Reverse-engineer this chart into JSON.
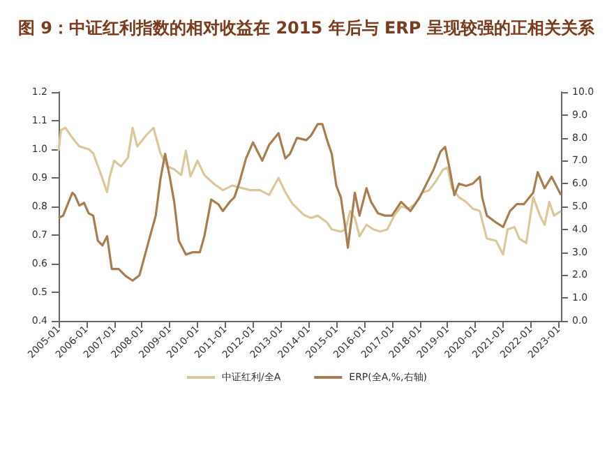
{
  "chart_data": {
    "type": "line",
    "title": "图 9：中证红利指数的相对收益在 2015 年后与 ERP 呈现较强的正相关关系",
    "xlim": [
      "2005-01",
      "2023-02"
    ],
    "xticks": [
      "2005-01",
      "2006-01",
      "2007-01",
      "2008-01",
      "2009-01",
      "2010-01",
      "2011-01",
      "2012-01",
      "2013-01",
      "2014-01",
      "2015-01",
      "2016-01",
      "2017-01",
      "2018-01",
      "2019-01",
      "2020-01",
      "2021-01",
      "2022-01",
      "2023-01"
    ],
    "ylim": [
      0.4,
      1.2
    ],
    "yticks": [
      0.4,
      0.5,
      0.6,
      0.7,
      0.8,
      0.9,
      {
        "value": 1,
        "label": "1.0"
      },
      1.1,
      1.2
    ],
    "y2lim": [
      0,
      10
    ],
    "y2ticks": [
      {
        "value": 0,
        "label": "0.0"
      },
      {
        "value": 1,
        "label": "1.0"
      },
      {
        "value": 2,
        "label": "2.0"
      },
      {
        "value": 3,
        "label": "3.0"
      },
      {
        "value": 4,
        "label": "4.0"
      },
      {
        "value": 5,
        "label": "5.0"
      },
      {
        "value": 6,
        "label": "6.0"
      },
      {
        "value": 7,
        "label": "7.0"
      },
      {
        "value": 8,
        "label": "8.0"
      },
      {
        "value": 9,
        "label": "9.0"
      },
      {
        "value": 10,
        "label": "10.0"
      }
    ],
    "grid": false,
    "legend": "bottom",
    "marker": "none",
    "line_style": "solid",
    "series": [
      {
        "name": "中证红利/全A",
        "color": "#dcc79a",
        "x": [
          "2005-01",
          "2005-02",
          "2005-04",
          "2005-07",
          "2005-10",
          "2006-02",
          "2006-04",
          "2006-07",
          "2006-10",
          "2006-11",
          "2007-01",
          "2007-04",
          "2007-07",
          "2007-09",
          "2007-11",
          "2008-03",
          "2008-06",
          "2008-09",
          "2008-12",
          "2009-03",
          "2009-06",
          "2009-08",
          "2009-10",
          "2010-01",
          "2010-04",
          "2010-08",
          "2010-12",
          "2011-04",
          "2011-08",
          "2011-12",
          "2012-04",
          "2012-08",
          "2012-12",
          "2013-03",
          "2013-06",
          "2013-11",
          "2014-02",
          "2014-05",
          "2014-09",
          "2014-11",
          "2015-03",
          "2015-05",
          "2015-07",
          "2015-09",
          "2015-11",
          "2016-02",
          "2016-05",
          "2016-08",
          "2016-11",
          "2017-02",
          "2017-05",
          "2017-08",
          "2017-11",
          "2018-02",
          "2018-05",
          "2018-08",
          "2018-11",
          "2019-01",
          "2019-03",
          "2019-06",
          "2019-09",
          "2019-12",
          "2020-03",
          "2020-06",
          "2020-10",
          "2021-01",
          "2021-03",
          "2021-06",
          "2021-08",
          "2021-11",
          "2022-02",
          "2022-05",
          "2022-07",
          "2022-09",
          "2022-11",
          "2023-02"
        ],
        "values": [
          0.995,
          1.067,
          1.075,
          1.04,
          1.01,
          1.0,
          0.986,
          0.92,
          0.85,
          0.9,
          0.96,
          0.94,
          0.97,
          1.075,
          1.01,
          1.05,
          1.075,
          0.986,
          0.94,
          0.93,
          0.91,
          0.995,
          0.905,
          0.96,
          0.91,
          0.88,
          0.857,
          0.873,
          0.865,
          0.857,
          0.857,
          0.84,
          0.9,
          0.85,
          0.81,
          0.77,
          0.76,
          0.768,
          0.744,
          0.72,
          0.712,
          0.72,
          0.784,
          0.76,
          0.696,
          0.736,
          0.72,
          0.712,
          0.72,
          0.768,
          0.8,
          0.792,
          0.808,
          0.848,
          0.856,
          0.888,
          0.928,
          0.936,
          0.864,
          0.832,
          0.816,
          0.792,
          0.784,
          0.688,
          0.68,
          0.632,
          0.72,
          0.728,
          0.688,
          0.672,
          0.832,
          0.768,
          0.736,
          0.816,
          0.768,
          0.784
        ]
      },
      {
        "name": "ERP(全A,%,右轴)",
        "color": "#a87d50",
        "axis": "y2",
        "x": [
          "2005-01",
          "2005-03",
          "2005-05",
          "2005-07",
          "2005-08",
          "2005-10",
          "2005-12",
          "2006-02",
          "2006-04",
          "2006-06",
          "2006-08",
          "2006-10",
          "2006-12",
          "2007-03",
          "2007-06",
          "2007-09",
          "2007-12",
          "2008-04",
          "2008-07",
          "2008-09",
          "2008-11",
          "2009-01",
          "2009-03",
          "2009-05",
          "2009-08",
          "2009-11",
          "2010-02",
          "2010-04",
          "2010-07",
          "2010-10",
          "2010-12",
          "2011-03",
          "2011-05",
          "2011-07",
          "2011-10",
          "2012-01",
          "2012-03",
          "2012-05",
          "2012-08",
          "2012-12",
          "2013-03",
          "2013-05",
          "2013-08",
          "2013-12",
          "2014-02",
          "2014-05",
          "2014-07",
          "2014-09",
          "2014-11",
          "2015-01",
          "2015-03",
          "2015-05",
          "2015-06",
          "2015-08",
          "2015-09",
          "2015-11",
          "2016-02",
          "2016-04",
          "2016-07",
          "2016-10",
          "2017-01",
          "2017-05",
          "2017-09",
          "2018-01",
          "2018-04",
          "2018-07",
          "2018-10",
          "2018-12",
          "2019-02",
          "2019-04",
          "2019-06",
          "2019-09",
          "2019-12",
          "2020-03",
          "2020-04",
          "2020-06",
          "2020-10",
          "2021-01",
          "2021-04",
          "2021-07",
          "2021-10",
          "2022-02",
          "2022-04",
          "2022-07",
          "2022-10",
          "2023-02"
        ],
        "values": [
          4.49,
          4.6,
          5.1,
          5.6,
          5.5,
          5.04,
          5.16,
          4.7,
          4.6,
          3.5,
          3.3,
          3.7,
          2.27,
          2.27,
          1.96,
          1.76,
          2.0,
          3.5,
          4.6,
          6.2,
          7.3,
          6.3,
          5.2,
          3.5,
          2.9,
          3.0,
          3.0,
          3.7,
          5.3,
          5.1,
          4.8,
          5.2,
          5.4,
          6.0,
          7.1,
          7.8,
          7.4,
          7.0,
          7.7,
          8.2,
          7.1,
          7.3,
          8.0,
          7.9,
          8.1,
          8.6,
          8.6,
          7.9,
          7.3,
          5.9,
          5.4,
          4.0,
          3.2,
          4.8,
          5.6,
          4.6,
          5.8,
          5.2,
          4.7,
          4.6,
          4.6,
          5.2,
          4.8,
          5.4,
          6.0,
          6.6,
          7.4,
          7.6,
          6.6,
          5.5,
          6.0,
          5.9,
          6.0,
          6.3,
          5.4,
          4.6,
          4.3,
          4.1,
          4.8,
          5.1,
          5.1,
          5.6,
          6.5,
          5.8,
          6.3,
          5.5
        ]
      }
    ]
  }
}
